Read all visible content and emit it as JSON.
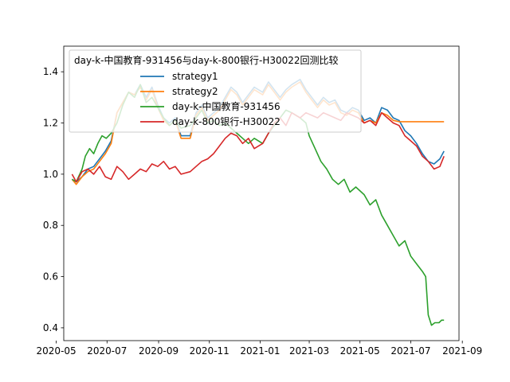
{
  "chart_data": {
    "type": "line",
    "title": "",
    "xlabel": "",
    "ylabel": "",
    "x_range": [
      "2020-05-10",
      "2021-08-28"
    ],
    "ylim": [
      0.35,
      1.5
    ],
    "grid": false,
    "legend": {
      "title": "day-k-中国教育-931456与day-k-800银行-H30022回测比较",
      "placement": "upper-left"
    },
    "x_ticks": [
      "2020-05",
      "2020-07",
      "2020-09",
      "2020-11",
      "2021-01",
      "2021-03",
      "2021-05",
      "2021-07",
      "2021-09"
    ],
    "y_ticks": [
      "0.4",
      "0.6",
      "0.8",
      "1.0",
      "1.2",
      "1.4"
    ],
    "y_tick_values": [
      0.4,
      0.6,
      0.8,
      1.0,
      1.2,
      1.4
    ],
    "series": [
      {
        "name": "strategy1",
        "color": "#1f77b4",
        "points": [
          [
            "2020-05-20",
            0.98
          ],
          [
            "2020-05-25",
            0.97
          ],
          [
            "2020-06-01",
            0.99
          ],
          [
            "2020-06-08",
            1.02
          ],
          [
            "2020-06-15",
            1.03
          ],
          [
            "2020-06-22",
            1.06
          ],
          [
            "2020-06-29",
            1.09
          ],
          [
            "2020-07-06",
            1.13
          ],
          [
            "2020-07-13",
            1.24
          ],
          [
            "2020-07-20",
            1.28
          ],
          [
            "2020-07-27",
            1.32
          ],
          [
            "2020-08-03",
            1.31
          ],
          [
            "2020-08-10",
            1.35
          ],
          [
            "2020-08-17",
            1.3
          ],
          [
            "2020-08-24",
            1.34
          ],
          [
            "2020-08-31",
            1.27
          ],
          [
            "2020-09-07",
            1.22
          ],
          [
            "2020-09-14",
            1.2
          ],
          [
            "2020-09-21",
            1.22
          ],
          [
            "2020-09-28",
            1.15
          ],
          [
            "2020-10-09",
            1.15
          ],
          [
            "2020-10-16",
            1.24
          ],
          [
            "2020-10-23",
            1.27
          ],
          [
            "2020-10-30",
            1.22
          ],
          [
            "2020-11-06",
            1.24
          ],
          [
            "2020-11-13",
            1.26
          ],
          [
            "2020-11-20",
            1.3
          ],
          [
            "2020-11-27",
            1.34
          ],
          [
            "2020-12-04",
            1.32
          ],
          [
            "2020-12-11",
            1.28
          ],
          [
            "2020-12-18",
            1.31
          ],
          [
            "2020-12-25",
            1.34
          ],
          [
            "2021-01-04",
            1.32
          ],
          [
            "2021-01-11",
            1.36
          ],
          [
            "2021-01-18",
            1.33
          ],
          [
            "2021-01-25",
            1.3
          ],
          [
            "2021-02-01",
            1.33
          ],
          [
            "2021-02-08",
            1.35
          ],
          [
            "2021-02-18",
            1.37
          ],
          [
            "2021-02-25",
            1.33
          ],
          [
            "2021-03-04",
            1.3
          ],
          [
            "2021-03-11",
            1.27
          ],
          [
            "2021-03-18",
            1.3
          ],
          [
            "2021-03-25",
            1.28
          ],
          [
            "2021-04-01",
            1.29
          ],
          [
            "2021-04-08",
            1.25
          ],
          [
            "2021-04-15",
            1.24
          ],
          [
            "2021-04-22",
            1.26
          ],
          [
            "2021-04-29",
            1.25
          ],
          [
            "2021-05-06",
            1.21
          ],
          [
            "2021-05-13",
            1.22
          ],
          [
            "2021-05-20",
            1.2
          ],
          [
            "2021-05-27",
            1.26
          ],
          [
            "2021-06-03",
            1.25
          ],
          [
            "2021-06-10",
            1.22
          ],
          [
            "2021-06-17",
            1.21
          ],
          [
            "2021-06-24",
            1.17
          ],
          [
            "2021-07-01",
            1.15
          ],
          [
            "2021-07-08",
            1.12
          ],
          [
            "2021-07-15",
            1.08
          ],
          [
            "2021-07-22",
            1.05
          ],
          [
            "2021-07-29",
            1.04
          ],
          [
            "2021-08-05",
            1.06
          ],
          [
            "2021-08-10",
            1.09
          ]
        ]
      },
      {
        "name": "strategy2",
        "color": "#ff7f0e",
        "points": [
          [
            "2020-05-20",
            0.98
          ],
          [
            "2020-05-25",
            0.96
          ],
          [
            "2020-06-01",
            0.99
          ],
          [
            "2020-06-08",
            1.01
          ],
          [
            "2020-06-15",
            1.02
          ],
          [
            "2020-06-22",
            1.05
          ],
          [
            "2020-06-29",
            1.08
          ],
          [
            "2020-07-06",
            1.12
          ],
          [
            "2020-07-13",
            1.24
          ],
          [
            "2020-07-20",
            1.28
          ],
          [
            "2020-07-27",
            1.32
          ],
          [
            "2020-08-03",
            1.31
          ],
          [
            "2020-08-10",
            1.34
          ],
          [
            "2020-08-17",
            1.29
          ],
          [
            "2020-08-24",
            1.33
          ],
          [
            "2020-08-31",
            1.26
          ],
          [
            "2020-09-07",
            1.21
          ],
          [
            "2020-09-14",
            1.19
          ],
          [
            "2020-09-21",
            1.21
          ],
          [
            "2020-09-28",
            1.14
          ],
          [
            "2020-10-09",
            1.14
          ],
          [
            "2020-10-16",
            1.23
          ],
          [
            "2020-10-23",
            1.26
          ],
          [
            "2020-10-30",
            1.21
          ],
          [
            "2020-11-06",
            1.23
          ],
          [
            "2020-11-13",
            1.25
          ],
          [
            "2020-11-20",
            1.29
          ],
          [
            "2020-11-27",
            1.33
          ],
          [
            "2020-12-04",
            1.31
          ],
          [
            "2020-12-11",
            1.27
          ],
          [
            "2020-12-18",
            1.3
          ],
          [
            "2020-12-25",
            1.33
          ],
          [
            "2021-01-04",
            1.31
          ],
          [
            "2021-01-11",
            1.35
          ],
          [
            "2021-01-18",
            1.32
          ],
          [
            "2021-01-25",
            1.29
          ],
          [
            "2021-02-01",
            1.32
          ],
          [
            "2021-02-08",
            1.34
          ],
          [
            "2021-02-18",
            1.36
          ],
          [
            "2021-02-25",
            1.32
          ],
          [
            "2021-03-04",
            1.29
          ],
          [
            "2021-03-11",
            1.26
          ],
          [
            "2021-03-18",
            1.29
          ],
          [
            "2021-03-25",
            1.27
          ],
          [
            "2021-04-01",
            1.28
          ],
          [
            "2021-04-08",
            1.24
          ],
          [
            "2021-04-15",
            1.23
          ],
          [
            "2021-04-22",
            1.25
          ],
          [
            "2021-04-29",
            1.24
          ],
          [
            "2021-05-06",
            1.2
          ],
          [
            "2021-05-13",
            1.21
          ],
          [
            "2021-05-20",
            1.2
          ],
          [
            "2021-05-27",
            1.24
          ],
          [
            "2021-06-03",
            1.23
          ],
          [
            "2021-06-10",
            1.21
          ],
          [
            "2021-06-17",
            1.205
          ],
          [
            "2021-07-01",
            1.205
          ],
          [
            "2021-07-15",
            1.205
          ],
          [
            "2021-08-01",
            1.205
          ],
          [
            "2021-08-10",
            1.205
          ]
        ]
      },
      {
        "name": "day-k-中国教育-931456",
        "color": "#2ca02c",
        "points": [
          [
            "2020-05-20",
            0.98
          ],
          [
            "2020-05-25",
            0.97
          ],
          [
            "2020-06-01",
            1.02
          ],
          [
            "2020-06-05",
            1.07
          ],
          [
            "2020-06-10",
            1.1
          ],
          [
            "2020-06-15",
            1.08
          ],
          [
            "2020-06-20",
            1.12
          ],
          [
            "2020-06-25",
            1.15
          ],
          [
            "2020-06-30",
            1.14
          ],
          [
            "2020-07-06",
            1.16
          ],
          [
            "2020-07-13",
            1.2
          ],
          [
            "2020-07-20",
            1.27
          ],
          [
            "2020-07-27",
            1.32
          ],
          [
            "2020-08-03",
            1.3
          ],
          [
            "2020-08-10",
            1.35
          ],
          [
            "2020-08-17",
            1.28
          ],
          [
            "2020-08-24",
            1.3
          ],
          [
            "2020-08-31",
            1.26
          ],
          [
            "2020-09-07",
            1.22
          ],
          [
            "2020-09-14",
            1.19
          ],
          [
            "2020-09-21",
            1.21
          ],
          [
            "2020-09-28",
            1.18
          ],
          [
            "2020-10-09",
            1.19
          ],
          [
            "2020-10-16",
            1.22
          ],
          [
            "2020-10-23",
            1.25
          ],
          [
            "2020-10-30",
            1.2
          ],
          [
            "2020-11-06",
            1.21
          ],
          [
            "2020-11-13",
            1.19
          ],
          [
            "2020-11-20",
            1.2
          ],
          [
            "2020-11-27",
            1.18
          ],
          [
            "2020-12-04",
            1.16
          ],
          [
            "2020-12-11",
            1.14
          ],
          [
            "2020-12-18",
            1.12
          ],
          [
            "2020-12-25",
            1.14
          ],
          [
            "2021-01-04",
            1.12
          ],
          [
            "2021-01-11",
            1.16
          ],
          [
            "2021-01-18",
            1.19
          ],
          [
            "2021-01-25",
            1.22
          ],
          [
            "2021-02-01",
            1.25
          ],
          [
            "2021-02-08",
            1.24
          ],
          [
            "2021-02-18",
            1.22
          ],
          [
            "2021-02-25",
            1.2
          ],
          [
            "2021-03-01",
            1.15
          ],
          [
            "2021-03-08",
            1.1
          ],
          [
            "2021-03-15",
            1.05
          ],
          [
            "2021-03-22",
            1.02
          ],
          [
            "2021-03-29",
            0.98
          ],
          [
            "2021-04-05",
            0.96
          ],
          [
            "2021-04-12",
            0.98
          ],
          [
            "2021-04-19",
            0.93
          ],
          [
            "2021-04-26",
            0.95
          ],
          [
            "2021-05-06",
            0.92
          ],
          [
            "2021-05-13",
            0.88
          ],
          [
            "2021-05-20",
            0.9
          ],
          [
            "2021-05-27",
            0.84
          ],
          [
            "2021-06-03",
            0.8
          ],
          [
            "2021-06-10",
            0.76
          ],
          [
            "2021-06-17",
            0.72
          ],
          [
            "2021-06-24",
            0.74
          ],
          [
            "2021-07-01",
            0.68
          ],
          [
            "2021-07-08",
            0.65
          ],
          [
            "2021-07-15",
            0.62
          ],
          [
            "2021-07-19",
            0.6
          ],
          [
            "2021-07-22",
            0.45
          ],
          [
            "2021-07-26",
            0.41
          ],
          [
            "2021-07-30",
            0.42
          ],
          [
            "2021-08-04",
            0.42
          ],
          [
            "2021-08-07",
            0.43
          ],
          [
            "2021-08-10",
            0.43
          ]
        ]
      },
      {
        "name": "day-k-800银行-H30022",
        "color": "#d62728",
        "points": [
          [
            "2020-05-20",
            1.0
          ],
          [
            "2020-05-25",
            0.97
          ],
          [
            "2020-06-01",
            1.01
          ],
          [
            "2020-06-08",
            1.02
          ],
          [
            "2020-06-15",
            1.0
          ],
          [
            "2020-06-22",
            1.03
          ],
          [
            "2020-06-29",
            0.99
          ],
          [
            "2020-07-06",
            0.98
          ],
          [
            "2020-07-13",
            1.03
          ],
          [
            "2020-07-20",
            1.01
          ],
          [
            "2020-07-27",
            0.98
          ],
          [
            "2020-08-03",
            1.0
          ],
          [
            "2020-08-10",
            1.02
          ],
          [
            "2020-08-17",
            1.01
          ],
          [
            "2020-08-24",
            1.04
          ],
          [
            "2020-08-31",
            1.03
          ],
          [
            "2020-09-07",
            1.05
          ],
          [
            "2020-09-14",
            1.02
          ],
          [
            "2020-09-21",
            1.03
          ],
          [
            "2020-09-28",
            1.0
          ],
          [
            "2020-10-09",
            1.01
          ],
          [
            "2020-10-16",
            1.03
          ],
          [
            "2020-10-23",
            1.05
          ],
          [
            "2020-10-30",
            1.06
          ],
          [
            "2020-11-06",
            1.08
          ],
          [
            "2020-11-13",
            1.11
          ],
          [
            "2020-11-20",
            1.14
          ],
          [
            "2020-11-27",
            1.16
          ],
          [
            "2020-12-04",
            1.15
          ],
          [
            "2020-12-11",
            1.12
          ],
          [
            "2020-12-18",
            1.14
          ],
          [
            "2020-12-25",
            1.1
          ],
          [
            "2021-01-04",
            1.12
          ],
          [
            "2021-01-11",
            1.16
          ],
          [
            "2021-01-18",
            1.2
          ],
          [
            "2021-01-25",
            1.22
          ],
          [
            "2021-02-01",
            1.19
          ],
          [
            "2021-02-08",
            1.24
          ],
          [
            "2021-02-18",
            1.22
          ],
          [
            "2021-02-25",
            1.24
          ],
          [
            "2021-03-04",
            1.23
          ],
          [
            "2021-03-11",
            1.22
          ],
          [
            "2021-03-18",
            1.24
          ],
          [
            "2021-03-25",
            1.23
          ],
          [
            "2021-04-01",
            1.22
          ],
          [
            "2021-04-08",
            1.21
          ],
          [
            "2021-04-15",
            1.24
          ],
          [
            "2021-04-22",
            1.23
          ],
          [
            "2021-04-29",
            1.22
          ],
          [
            "2021-05-06",
            1.2
          ],
          [
            "2021-05-13",
            1.21
          ],
          [
            "2021-05-20",
            1.19
          ],
          [
            "2021-05-27",
            1.24
          ],
          [
            "2021-06-03",
            1.22
          ],
          [
            "2021-06-10",
            1.2
          ],
          [
            "2021-06-17",
            1.19
          ],
          [
            "2021-06-24",
            1.15
          ],
          [
            "2021-07-01",
            1.13
          ],
          [
            "2021-07-08",
            1.11
          ],
          [
            "2021-07-15",
            1.07
          ],
          [
            "2021-07-22",
            1.05
          ],
          [
            "2021-07-29",
            1.02
          ],
          [
            "2021-08-05",
            1.03
          ],
          [
            "2021-08-10",
            1.07
          ]
        ]
      }
    ]
  }
}
